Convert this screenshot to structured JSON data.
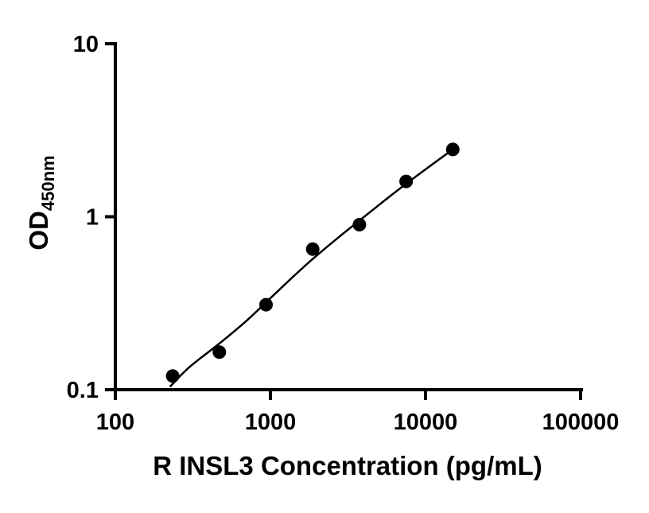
{
  "figure": {
    "background": "#ffffff",
    "point_color": "#000000",
    "line_color": "#000000",
    "axis_color": "#000000"
  },
  "chart_data": {
    "type": "scatter",
    "title": "",
    "xlabel": "R INSL3 Concentration (pg/mL)",
    "ylabel_main": "OD",
    "ylabel_sub": "450nm",
    "x_scale": "log",
    "y_scale": "log",
    "xlim": [
      100,
      100000
    ],
    "ylim": [
      0.1,
      10
    ],
    "grid": false,
    "legend": "none",
    "x_ticks": [
      {
        "value": 100,
        "label": "100"
      },
      {
        "value": 1000,
        "label": "1000"
      },
      {
        "value": 10000,
        "label": "10000"
      },
      {
        "value": 100000,
        "label": "100000"
      }
    ],
    "y_ticks": [
      {
        "value": 0.1,
        "label": "0.1"
      },
      {
        "value": 1,
        "label": "1"
      },
      {
        "value": 10,
        "label": "10"
      }
    ],
    "series": [
      {
        "name": "standard-points",
        "type": "scatter",
        "x": [
          234.4,
          468.8,
          937.5,
          1875,
          3750,
          7500,
          15000
        ],
        "y": [
          0.12,
          0.165,
          0.31,
          0.65,
          0.9,
          1.6,
          2.45
        ]
      },
      {
        "name": "fit-curve",
        "type": "line",
        "x": [
          225,
          300,
          468.8,
          700,
          937.5,
          1400,
          1875,
          2700,
          3750,
          5500,
          7500,
          11000,
          15000
        ],
        "y": [
          0.104,
          0.135,
          0.185,
          0.25,
          0.32,
          0.45,
          0.57,
          0.75,
          0.95,
          1.25,
          1.55,
          2.0,
          2.45
        ]
      }
    ]
  }
}
